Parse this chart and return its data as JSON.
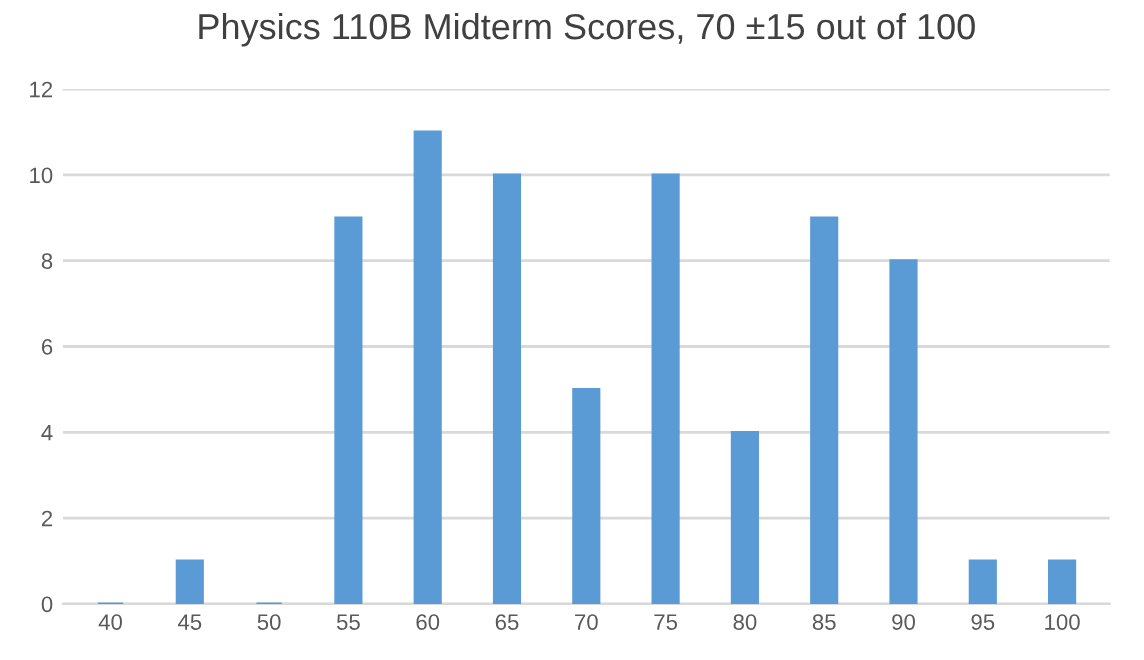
{
  "chart_data": {
    "type": "bar",
    "title": "Physics 110B Midterm Scores, 70 ±15 out of 100",
    "categories": [
      "40",
      "45",
      "50",
      "55",
      "60",
      "65",
      "70",
      "75",
      "80",
      "85",
      "90",
      "95",
      "100"
    ],
    "values": [
      0,
      1,
      0,
      9,
      11,
      10,
      5,
      10,
      4,
      9,
      8,
      1,
      1
    ],
    "color": "#5b9bd5",
    "ylim": [
      0,
      12
    ],
    "yticks": [
      0,
      2,
      4,
      6,
      8,
      10,
      12
    ],
    "grid": "y"
  }
}
